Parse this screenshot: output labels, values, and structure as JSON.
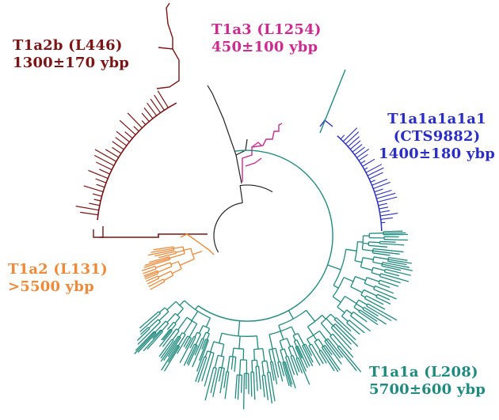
{
  "colors": {
    "t1a2b": "#7b1414",
    "t1a3": "#cc2b8f",
    "t1a1a1a1a1": "#2a2ec4",
    "t1a1a": "#1f8a7e",
    "t1a2": "#ee8a3a",
    "root": "#222222"
  },
  "clades": {
    "t1a2b": {
      "name": "T1a2b (L446)",
      "age": "1300±170 ybp"
    },
    "t1a3": {
      "name": "T1a3 (L1254)",
      "age": "450±100 ybp"
    },
    "t1a1a1a1a1": {
      "name": "T1a1a1a1a1",
      "sub": "(CTS9882)",
      "age": "1400±180 ybp"
    },
    "t1a2": {
      "name": "T1a2 (L131)",
      "age": ">5500 ybp"
    },
    "t1a1a": {
      "name": "T1a1a (L208)",
      "age": "5700±600 ybp"
    }
  }
}
